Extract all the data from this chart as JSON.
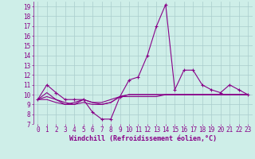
{
  "xlabel": "Windchill (Refroidissement éolien,°C)",
  "background_color": "#ceeee8",
  "grid_color": "#aacccc",
  "line_color": "#880088",
  "xlim": [
    -0.5,
    23.5
  ],
  "ylim": [
    7,
    19.5
  ],
  "yticks": [
    7,
    8,
    9,
    10,
    11,
    12,
    13,
    14,
    15,
    16,
    17,
    18,
    19
  ],
  "xticks": [
    0,
    1,
    2,
    3,
    4,
    5,
    6,
    7,
    8,
    9,
    10,
    11,
    12,
    13,
    14,
    15,
    16,
    17,
    18,
    19,
    20,
    21,
    22,
    23
  ],
  "series": [
    [
      9.5,
      11.0,
      10.2,
      9.5,
      9.5,
      9.5,
      8.2,
      7.5,
      7.5,
      9.8,
      11.5,
      11.8,
      14.0,
      17.0,
      19.2,
      10.5,
      12.5,
      12.5,
      11.0,
      10.5,
      10.2,
      11.0,
      10.5,
      10.0
    ],
    [
      9.5,
      10.2,
      9.5,
      9.2,
      9.0,
      9.5,
      9.2,
      9.2,
      9.5,
      9.8,
      10.0,
      10.0,
      10.0,
      10.0,
      10.0,
      10.0,
      10.0,
      10.0,
      10.0,
      10.0,
      10.0,
      10.0,
      10.0,
      10.0
    ],
    [
      9.5,
      9.8,
      9.5,
      9.0,
      9.2,
      9.5,
      9.2,
      9.0,
      9.2,
      9.8,
      10.0,
      10.0,
      10.0,
      10.0,
      10.0,
      10.0,
      10.0,
      10.0,
      10.0,
      10.0,
      10.0,
      10.0,
      10.0,
      10.0
    ],
    [
      9.5,
      9.5,
      9.2,
      9.0,
      9.0,
      9.2,
      9.0,
      9.0,
      9.2,
      9.8,
      9.8,
      9.8,
      9.8,
      9.8,
      10.0,
      10.0,
      10.0,
      10.0,
      10.0,
      10.0,
      10.0,
      10.0,
      10.0,
      10.0
    ]
  ],
  "line_width": 0.8,
  "marker_size": 2.5,
  "tick_fontsize": 5.5,
  "xlabel_fontsize": 6.0
}
